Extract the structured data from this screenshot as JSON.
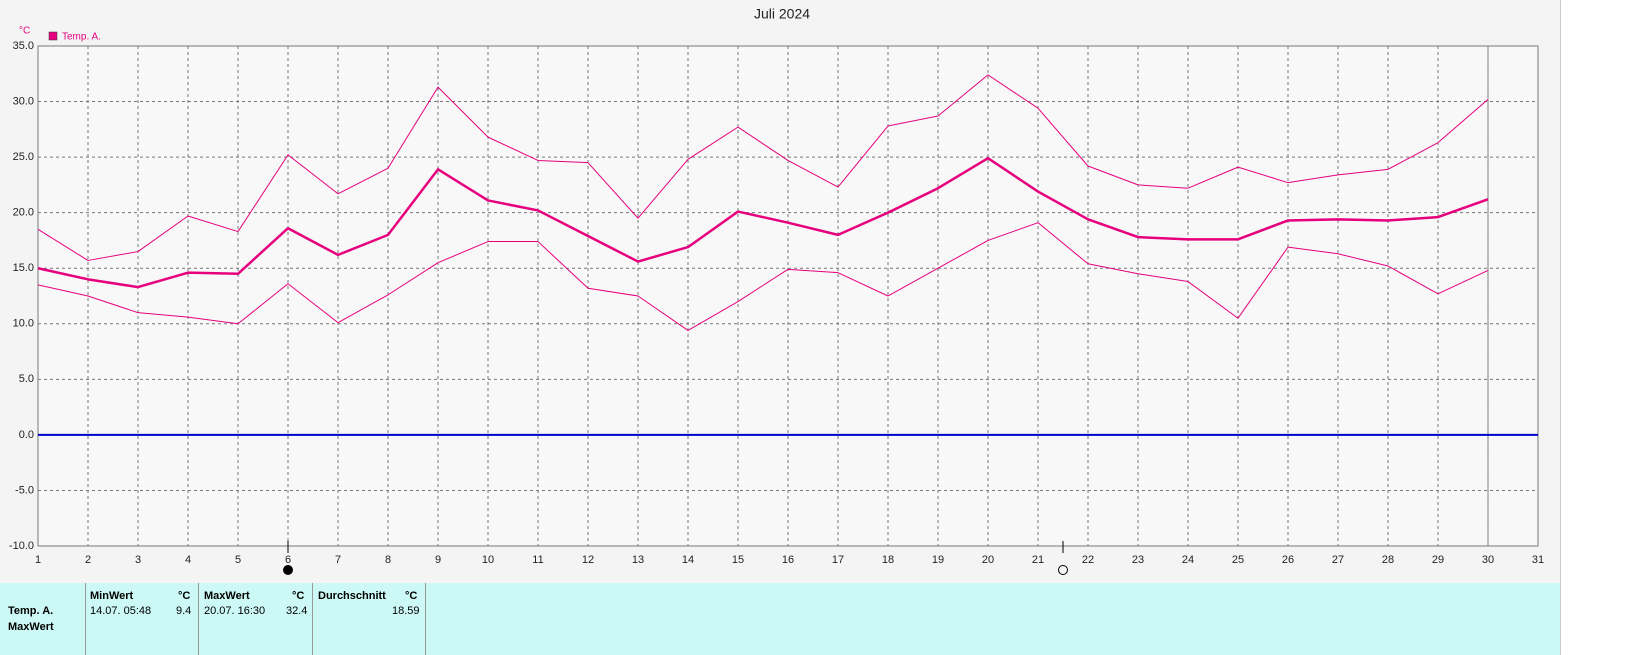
{
  "title": "Juli 2024",
  "chart_data": {
    "type": "line",
    "y_unit": "°C",
    "x": [
      1,
      2,
      3,
      4,
      5,
      6,
      7,
      8,
      9,
      10,
      11,
      12,
      13,
      14,
      15,
      16,
      17,
      18,
      19,
      20,
      21,
      22,
      23,
      24,
      25,
      26,
      27,
      28,
      29,
      30
    ],
    "series": [
      {
        "name": "Temp. A.",
        "color": "#e6007e",
        "values": [
          15.0,
          14.0,
          13.3,
          14.6,
          14.5,
          18.6,
          16.2,
          18.0,
          23.9,
          21.1,
          20.2,
          17.9,
          15.6,
          16.9,
          20.1,
          19.1,
          18.0,
          20.0,
          22.2,
          24.9,
          21.9,
          19.4,
          17.8,
          17.6,
          17.6,
          19.3,
          19.4,
          19.3,
          19.6,
          21.2
        ],
        "high": [
          18.5,
          15.7,
          16.5,
          19.7,
          18.3,
          25.2,
          21.7,
          24.0,
          31.3,
          26.8,
          24.7,
          24.5,
          19.5,
          24.8,
          27.7,
          24.7,
          22.3,
          27.8,
          28.7,
          32.4,
          29.4,
          24.2,
          22.5,
          22.2,
          24.1,
          22.7,
          23.4,
          23.9,
          26.3,
          30.2
        ],
        "low": [
          13.5,
          12.5,
          11.0,
          10.6,
          10.0,
          13.6,
          10.1,
          12.6,
          15.5,
          17.4,
          17.4,
          13.2,
          12.5,
          9.4,
          12.0,
          14.9,
          14.6,
          12.5,
          15.0,
          17.5,
          19.1,
          15.4,
          14.5,
          13.8,
          10.5,
          16.9,
          16.3,
          15.2,
          12.7,
          14.8
        ]
      }
    ],
    "xlim": [
      1,
      31
    ],
    "xticks": [
      1,
      2,
      3,
      4,
      5,
      6,
      7,
      8,
      9,
      10,
      11,
      12,
      13,
      14,
      15,
      16,
      17,
      18,
      19,
      20,
      21,
      22,
      23,
      24,
      25,
      26,
      27,
      28,
      29,
      30,
      31
    ],
    "ylim": [
      -10,
      35
    ],
    "yticks": [
      {
        "value": -10,
        "label": "-10.0"
      },
      {
        "value": -5,
        "label": "-5.0"
      },
      {
        "value": 0,
        "label": "0.0"
      },
      {
        "value": 5,
        "label": "5.0"
      },
      {
        "value": 10,
        "label": "10.0"
      },
      {
        "value": 15,
        "label": "15.0"
      },
      {
        "value": 20,
        "label": "20.0"
      },
      {
        "value": 25,
        "label": "25.0"
      },
      {
        "value": 30,
        "label": "30.0"
      },
      {
        "value": 35,
        "label": "35.0"
      }
    ],
    "grid": true,
    "zero_line_color": "#0000cc",
    "new_moon_x": 6,
    "full_moon_x": 21.5
  },
  "stats": {
    "row_labels": [
      "Temp. A.",
      "MaxWert"
    ],
    "columns": [
      {
        "header": "MinWert",
        "unit": "°C",
        "time": "14.07.  05:48",
        "value": 9.4
      },
      {
        "header": "MaxWert",
        "unit": "°C",
        "time": "20.07.  16:30",
        "value": 32.4
      },
      {
        "header": "Durchschnitt",
        "unit": "°C",
        "value": 18.59
      }
    ]
  }
}
